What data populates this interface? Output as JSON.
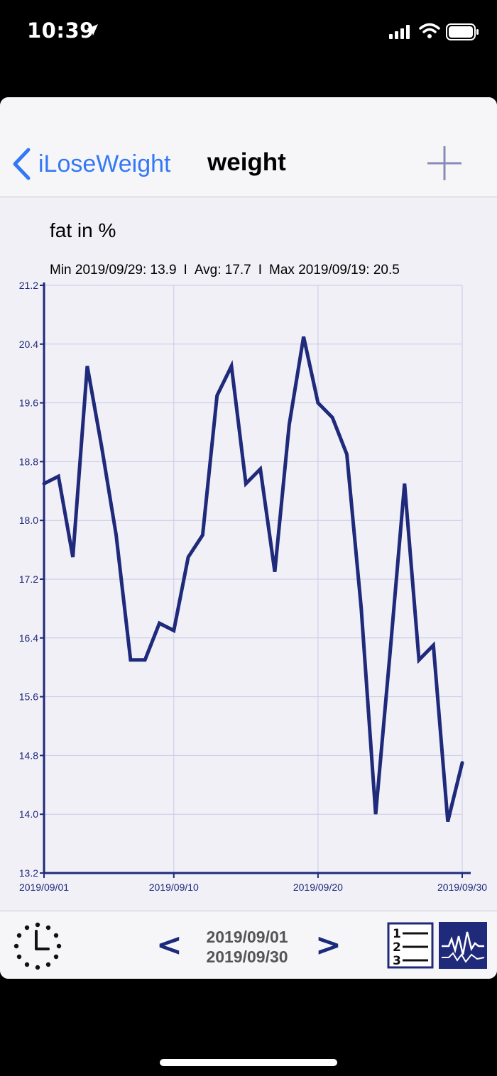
{
  "status_bar": {
    "time": "10:39"
  },
  "nav": {
    "back_label": "iLoseWeight",
    "title": "weight"
  },
  "chart": {
    "title": "fat in %",
    "stats": {
      "min": "Min 2019/09/29: 13.9",
      "avg": "Avg: 17.7",
      "max": "Max 2019/09/19: 20.5",
      "separator": "I"
    }
  },
  "chart_data": {
    "type": "line",
    "ylim": [
      13.2,
      21.2
    ],
    "y_ticks": [
      "21.2",
      "20.4",
      "19.6",
      "18.8",
      "18.0",
      "17.2",
      "16.4",
      "15.6",
      "14.8",
      "14.0",
      "13.2"
    ],
    "x_ticks": [
      "2019/09/01",
      "2019/09/10",
      "2019/09/20",
      "2019/09/30"
    ],
    "x_tick_days": [
      1,
      10,
      20,
      30
    ],
    "grid": true,
    "line_color": "#1f2a7a",
    "series": [
      {
        "x": [
          1,
          2,
          3,
          4,
          5,
          6,
          7,
          8,
          9,
          10,
          11,
          12,
          13,
          14,
          15,
          16,
          17,
          18,
          19,
          20,
          21,
          22,
          23,
          24,
          25,
          26,
          27,
          28,
          29,
          30
        ],
        "values": [
          18.5,
          18.6,
          17.5,
          20.1,
          19.0,
          17.8,
          16.1,
          16.1,
          16.6,
          16.5,
          17.5,
          17.8,
          19.7,
          20.1,
          18.5,
          18.7,
          17.3,
          19.3,
          20.5,
          19.6,
          19.4,
          18.9,
          16.8,
          14.0,
          16.2,
          18.5,
          16.1,
          16.3,
          13.9,
          14.7
        ]
      }
    ]
  },
  "toolbar": {
    "date_start": "2019/09/01",
    "date_end": "2019/09/30",
    "prev_label": "<",
    "next_label": ">"
  },
  "colors": {
    "accent": "#3478f6",
    "navy": "#1f2a7a",
    "background": "#f1f0f7"
  }
}
